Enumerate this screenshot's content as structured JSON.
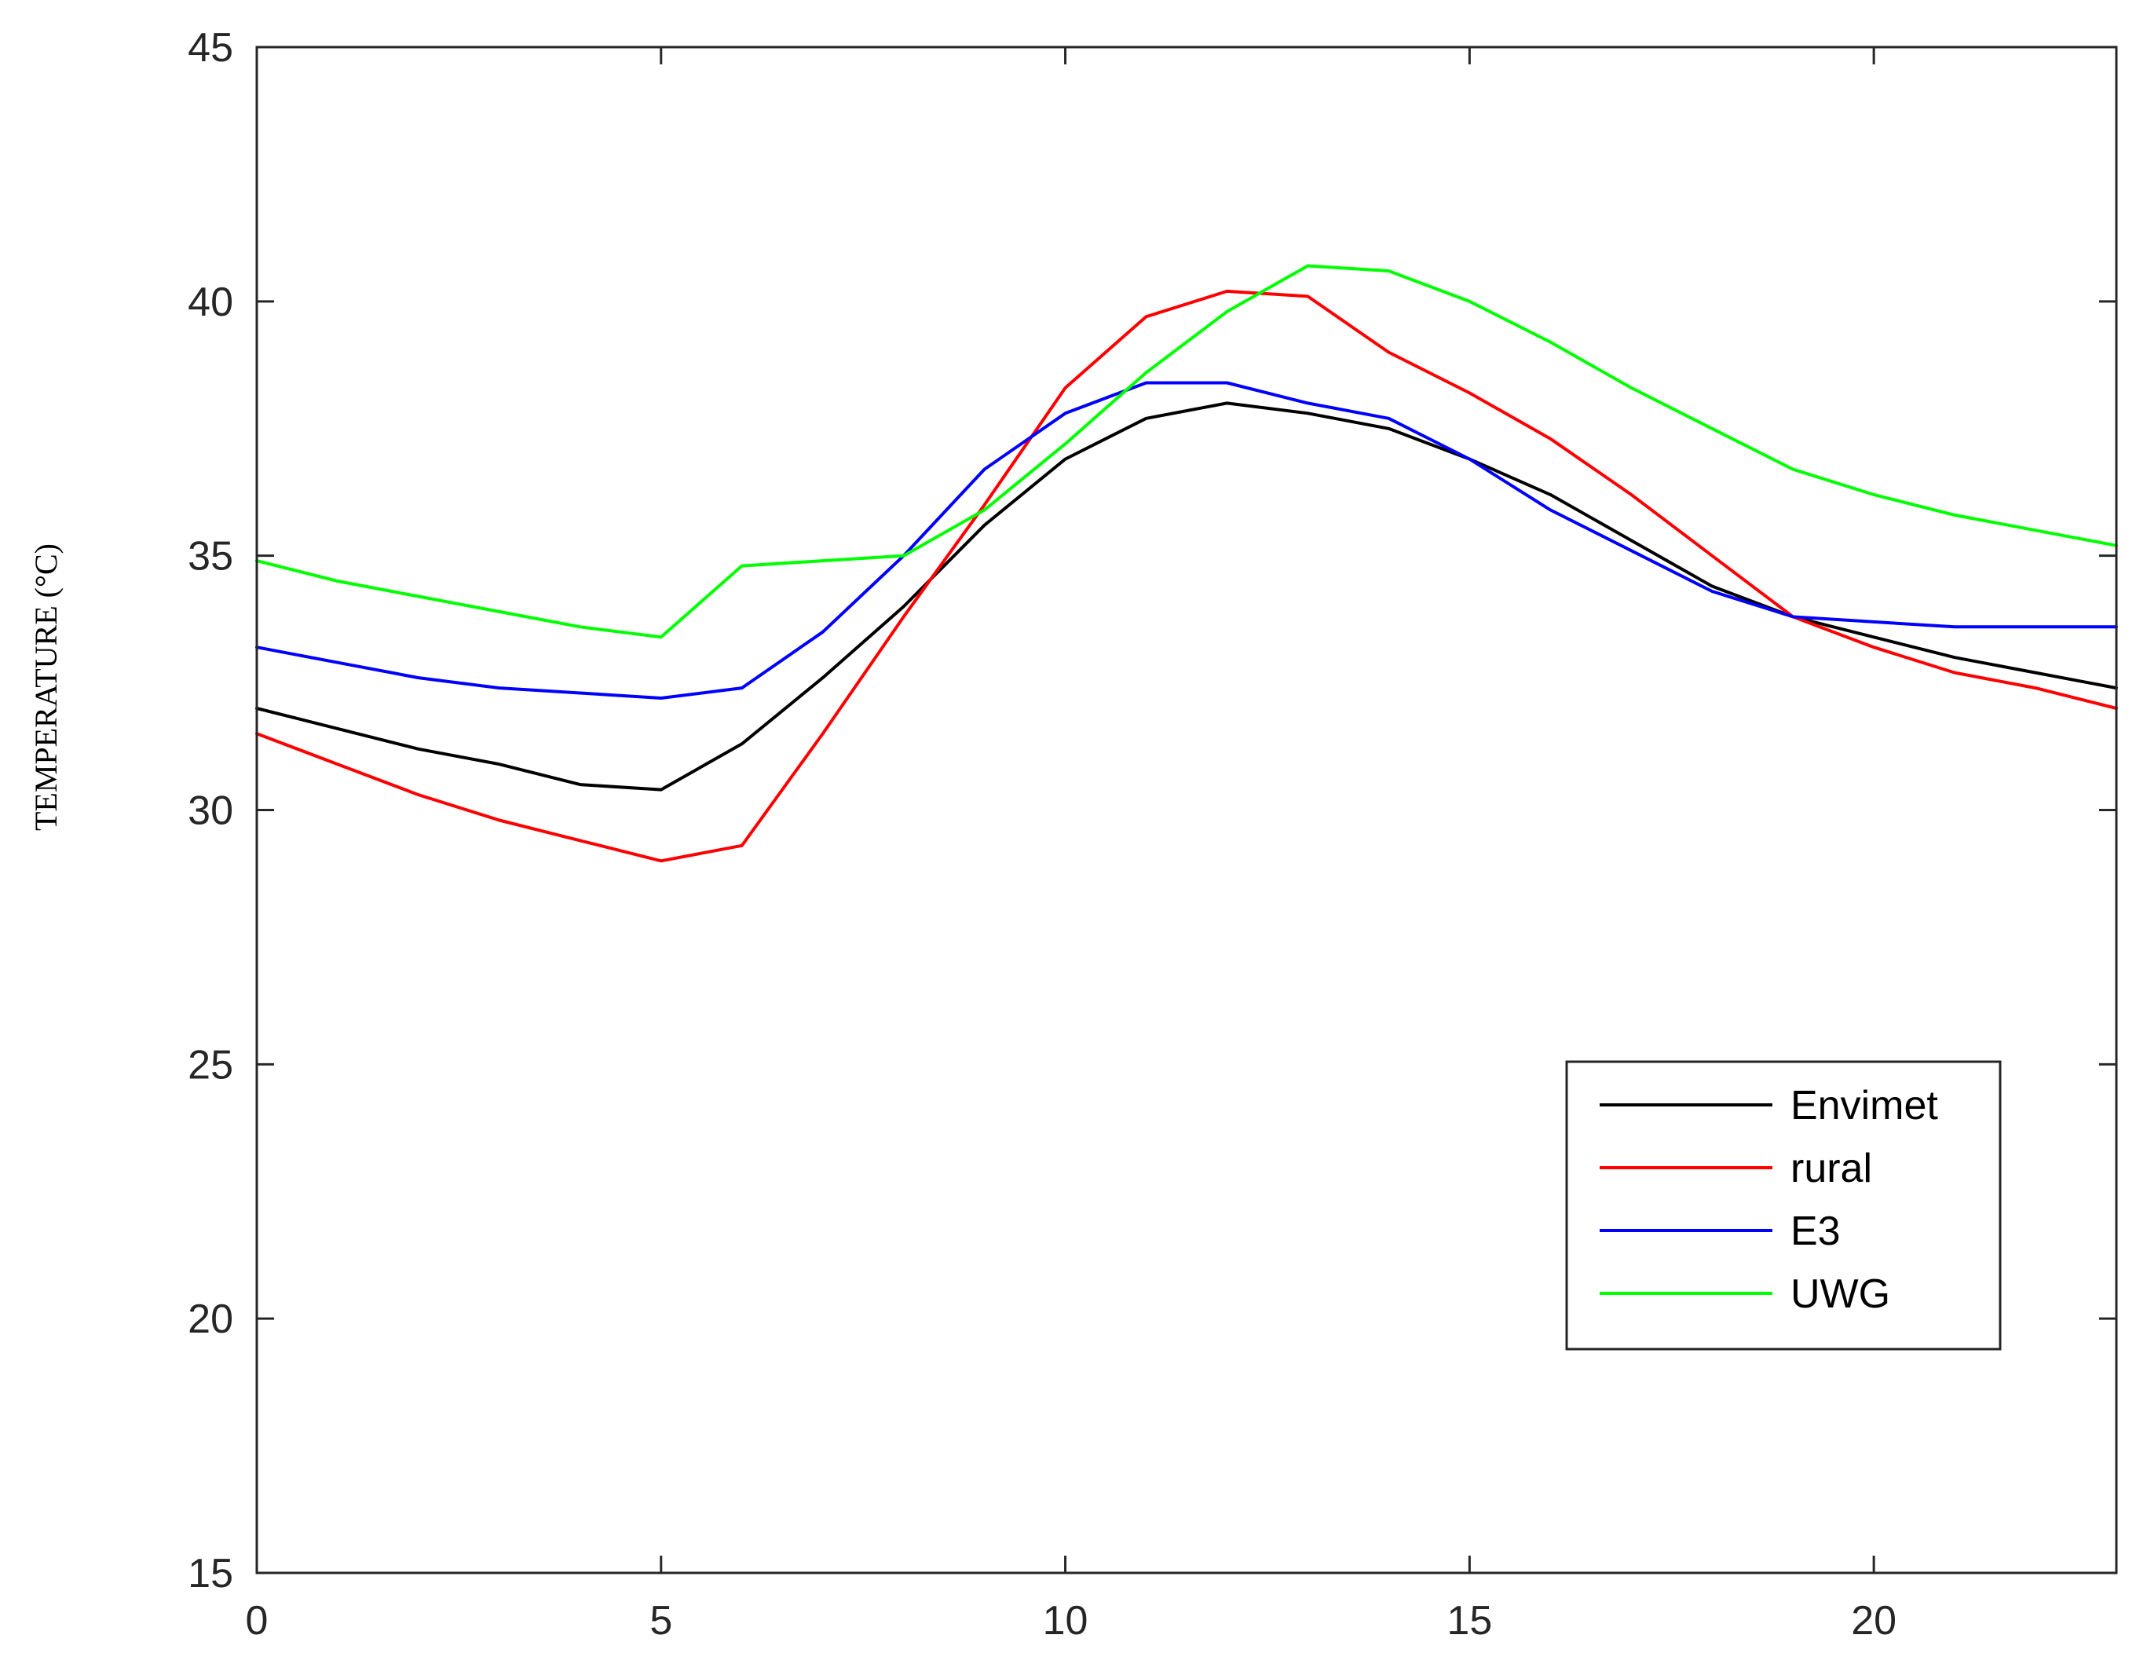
{
  "chart_data": {
    "type": "line",
    "title": "",
    "xlabel": "",
    "ylabel": "TEMPERATURE (°C)",
    "xlim": [
      0,
      23
    ],
    "ylim": [
      15,
      45
    ],
    "xticks": [
      0,
      5,
      10,
      15,
      20
    ],
    "yticks": [
      15,
      20,
      25,
      30,
      35,
      40,
      45
    ],
    "grid": false,
    "legend_position": "lower-right",
    "x": [
      0,
      1,
      2,
      3,
      4,
      5,
      6,
      7,
      8,
      9,
      10,
      11,
      12,
      13,
      14,
      15,
      16,
      17,
      18,
      19,
      20,
      21,
      22,
      23
    ],
    "series": [
      {
        "name": "Envimet",
        "color": "#000000",
        "values": [
          32.0,
          31.6,
          31.2,
          30.9,
          30.5,
          30.4,
          31.3,
          32.6,
          34.0,
          35.6,
          36.9,
          37.7,
          38.0,
          37.8,
          37.5,
          36.9,
          36.2,
          35.3,
          34.4,
          33.8,
          33.4,
          33.0,
          32.7,
          32.4
        ]
      },
      {
        "name": "rural",
        "color": "#ff0000",
        "values": [
          31.5,
          30.9,
          30.3,
          29.8,
          29.4,
          29.0,
          29.3,
          31.5,
          33.8,
          36.0,
          38.3,
          39.7,
          40.2,
          40.1,
          39.0,
          38.2,
          37.3,
          36.2,
          35.0,
          33.8,
          33.2,
          32.7,
          32.4,
          32.0
        ]
      },
      {
        "name": "E3",
        "color": "#0000ff",
        "values": [
          33.2,
          32.9,
          32.6,
          32.4,
          32.3,
          32.2,
          32.4,
          33.5,
          35.0,
          36.7,
          37.8,
          38.4,
          38.4,
          38.0,
          37.7,
          36.9,
          35.9,
          35.1,
          34.3,
          33.8,
          33.7,
          33.6,
          33.6,
          33.6
        ]
      },
      {
        "name": "UWG",
        "color": "#00ff00",
        "values": [
          34.9,
          34.5,
          34.2,
          33.9,
          33.6,
          33.4,
          34.8,
          34.9,
          35.0,
          35.9,
          37.2,
          38.6,
          39.8,
          40.7,
          40.6,
          40.0,
          39.2,
          38.3,
          37.5,
          36.7,
          36.2,
          35.8,
          35.5,
          35.2
        ]
      }
    ]
  }
}
